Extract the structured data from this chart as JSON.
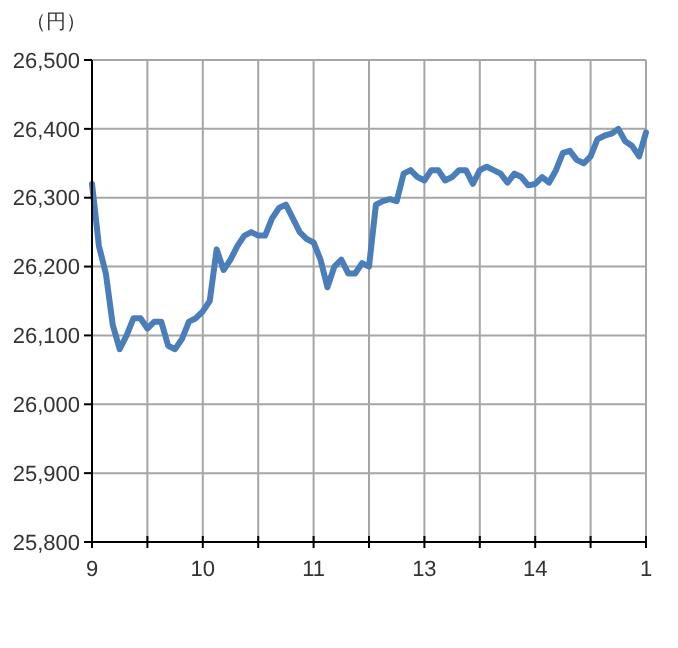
{
  "chart_data": {
    "type": "line",
    "ylabel": "（円）",
    "categories": [
      "9",
      null,
      null,
      null,
      null,
      null,
      null,
      null,
      null,
      null,
      null,
      null,
      null,
      null,
      null,
      null,
      "10",
      null,
      null,
      null,
      null,
      null,
      null,
      null,
      null,
      null,
      null,
      null,
      null,
      null,
      null,
      null,
      "11",
      null,
      null,
      null,
      null,
      null,
      null,
      null,
      null,
      null,
      null,
      null,
      null,
      null,
      null,
      null,
      "13",
      null,
      null,
      null,
      null,
      null,
      null,
      null,
      null,
      null,
      null,
      null,
      null,
      null,
      null,
      null,
      "14",
      null,
      null,
      null,
      null,
      null,
      null,
      null,
      null,
      null,
      null,
      null,
      null,
      null,
      null,
      null,
      "1"
    ],
    "series": [
      {
        "color": "#4a7ebb",
        "values": [
          26320,
          26230,
          26190,
          26115,
          26080,
          26100,
          26125,
          26125,
          26110,
          26120,
          26120,
          26085,
          26080,
          26095,
          26120,
          26125,
          26135,
          26150,
          26225,
          26195,
          26210,
          26230,
          26245,
          26250,
          26245,
          26245,
          26270,
          26285,
          26290,
          26270,
          26250,
          26240,
          26235,
          26210,
          26170,
          26200,
          26210,
          26190,
          26190,
          26205,
          26200,
          26290,
          26295,
          26298,
          26295,
          26335,
          26340,
          26330,
          26325,
          26340,
          26340,
          26325,
          26330,
          26340,
          26340,
          26320,
          26340,
          26345,
          26340,
          26335,
          26322,
          26335,
          26330,
          26318,
          26320,
          26330,
          26322,
          26340,
          26365,
          26368,
          26355,
          26350,
          26360,
          26385,
          26390,
          26393,
          26400,
          26382,
          26375,
          26360,
          26395
        ]
      }
    ],
    "ylim": [
      25800,
      26500
    ],
    "yticks": [
      {
        "value": 25800,
        "label": "25,800"
      },
      {
        "value": 25900,
        "label": "25,900"
      },
      {
        "value": 26000,
        "label": "26,000"
      },
      {
        "value": 26100,
        "label": "26,100"
      },
      {
        "value": 26200,
        "label": "26,200"
      },
      {
        "value": 26300,
        "label": "26,300"
      },
      {
        "value": 26400,
        "label": "26,400"
      },
      {
        "value": 26500,
        "label": "26,500"
      }
    ],
    "grid": true,
    "line_style": "solid",
    "marker": "none"
  }
}
